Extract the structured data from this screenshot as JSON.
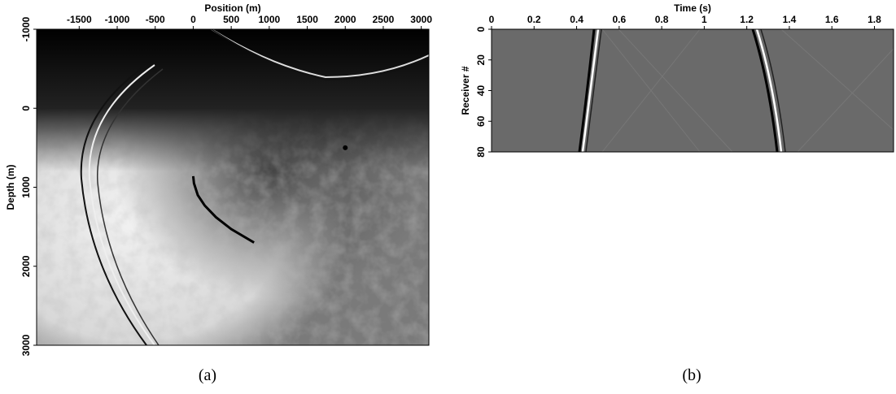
{
  "chart_data": [
    {
      "type": "image",
      "xlabel": "Position (m)",
      "ylabel": "Depth (m)",
      "caption": "(a)",
      "xlim": [
        -2060,
        3100
      ],
      "ylim": [
        -1000,
        3000
      ],
      "xticks": [
        -1500,
        -1000,
        -500,
        0,
        500,
        1000,
        1500,
        2000,
        2500,
        3000
      ],
      "yticks": [
        -1000,
        0,
        1000,
        2000,
        3000
      ],
      "series": [
        {
          "type": "line",
          "color": "#000000",
          "x": [
            0,
            10,
            60,
            150,
            300,
            500,
            800
          ],
          "y": [
            860,
            950,
            1100,
            1230,
            1380,
            1530,
            1700
          ]
        },
        {
          "type": "scatter",
          "color": "#000000",
          "x": [
            2000
          ],
          "y": [
            500
          ]
        }
      ]
    },
    {
      "type": "image",
      "xlabel": "Time (s)",
      "ylabel": "Receiver #",
      "caption": "(b)",
      "xlim": [
        0,
        1.89
      ],
      "ylim": [
        0,
        80
      ],
      "xticks": [
        0,
        0.2,
        0.4,
        0.6,
        0.8,
        1,
        1.2,
        1.4,
        1.6,
        1.8
      ],
      "yticks": [
        0,
        20,
        40,
        60,
        80
      ],
      "series": []
    }
  ]
}
